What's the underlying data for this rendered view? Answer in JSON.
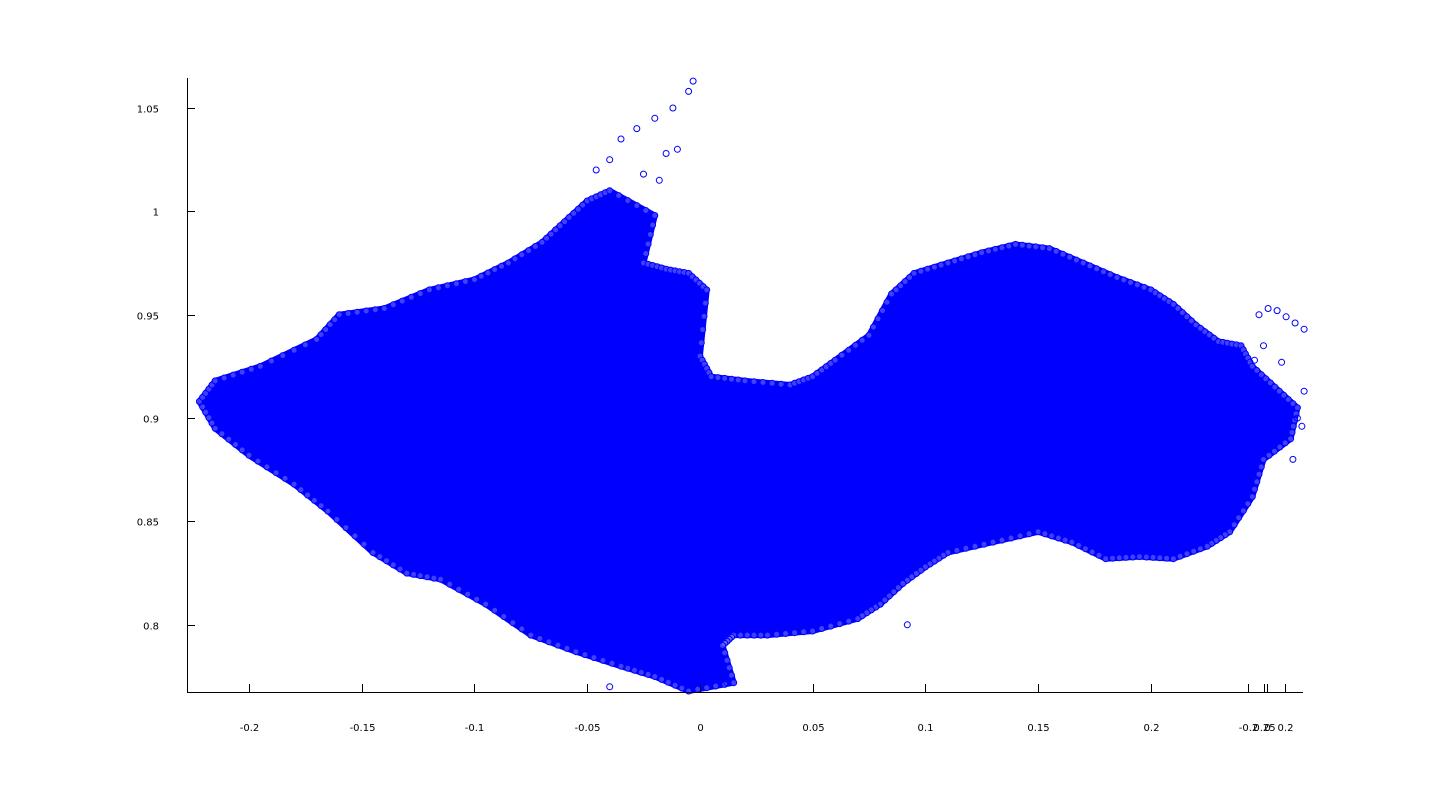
{
  "chart_data": {
    "type": "scatter",
    "title": "",
    "xlabel": "",
    "ylabel": "",
    "marker": "circle-open",
    "marker_color": "#0000ff",
    "grid": false,
    "legend": "none",
    "xlim": [
      -0.2275,
      0.2675
    ],
    "ylim": [
      0.7675,
      1.0645
    ],
    "x_ticks": [
      {
        "value": -0.2,
        "label": "-0.2"
      },
      {
        "value": -0.15,
        "label": "-0.15"
      },
      {
        "value": -0.1,
        "label": "-0.1"
      },
      {
        "value": -0.05,
        "label": "-0.05"
      },
      {
        "value": 0,
        "label": "0"
      },
      {
        "value": 0.05,
        "label": "0.05"
      },
      {
        "value": 0.1,
        "label": "0.1"
      },
      {
        "value": 0.15,
        "label": "0.15"
      },
      {
        "value": 0.2,
        "label": "0.2"
      },
      {
        "value": 0.25,
        "label": "0.25"
      }
    ],
    "extra_x_ticks_label_values": [
      "-0.2",
      "0",
      "0.2"
    ],
    "y_ticks": [
      {
        "value": 0.8,
        "label": "0.8"
      },
      {
        "value": 0.85,
        "label": "0.85"
      },
      {
        "value": 0.9,
        "label": "0.9"
      },
      {
        "value": 0.95,
        "label": "0.95"
      },
      {
        "value": 1,
        "label": "1"
      },
      {
        "value": 1.05,
        "label": "1.05"
      }
    ],
    "region_outline": [
      [
        -0.222,
        0.908
      ],
      [
        -0.215,
        0.918
      ],
      [
        -0.195,
        0.925
      ],
      [
        -0.17,
        0.938
      ],
      [
        -0.16,
        0.95
      ],
      [
        -0.14,
        0.953
      ],
      [
        -0.12,
        0.962
      ],
      [
        -0.1,
        0.967
      ],
      [
        -0.085,
        0.975
      ],
      [
        -0.07,
        0.985
      ],
      [
        -0.06,
        0.995
      ],
      [
        -0.05,
        1.005
      ],
      [
        -0.04,
        1.01
      ],
      [
        -0.02,
        0.998
      ],
      [
        -0.025,
        0.975
      ],
      [
        -0.015,
        0.972
      ],
      [
        -0.005,
        0.97
      ],
      [
        0.003,
        0.962
      ],
      [
        0.0,
        0.93
      ],
      [
        0.005,
        0.92
      ],
      [
        0.02,
        0.918
      ],
      [
        0.04,
        0.916
      ],
      [
        0.05,
        0.92
      ],
      [
        0.06,
        0.928
      ],
      [
        0.075,
        0.94
      ],
      [
        0.085,
        0.96
      ],
      [
        0.095,
        0.97
      ],
      [
        0.11,
        0.975
      ],
      [
        0.125,
        0.98
      ],
      [
        0.14,
        0.984
      ],
      [
        0.155,
        0.982
      ],
      [
        0.17,
        0.975
      ],
      [
        0.185,
        0.968
      ],
      [
        0.2,
        0.962
      ],
      [
        0.21,
        0.955
      ],
      [
        0.22,
        0.945
      ],
      [
        0.23,
        0.937
      ],
      [
        0.24,
        0.935
      ],
      [
        0.245,
        0.925
      ],
      [
        0.255,
        0.915
      ],
      [
        0.265,
        0.905
      ],
      [
        0.262,
        0.89
      ],
      [
        0.25,
        0.88
      ],
      [
        0.245,
        0.862
      ],
      [
        0.235,
        0.845
      ],
      [
        0.225,
        0.838
      ],
      [
        0.21,
        0.832
      ],
      [
        0.195,
        0.833
      ],
      [
        0.18,
        0.832
      ],
      [
        0.165,
        0.84
      ],
      [
        0.15,
        0.845
      ],
      [
        0.13,
        0.84
      ],
      [
        0.11,
        0.835
      ],
      [
        0.1,
        0.828
      ],
      [
        0.09,
        0.82
      ],
      [
        0.08,
        0.81
      ],
      [
        0.07,
        0.803
      ],
      [
        0.05,
        0.797
      ],
      [
        0.03,
        0.795
      ],
      [
        0.015,
        0.795
      ],
      [
        0.01,
        0.79
      ],
      [
        0.015,
        0.772
      ],
      [
        -0.005,
        0.768
      ],
      [
        -0.02,
        0.775
      ],
      [
        -0.035,
        0.78
      ],
      [
        -0.055,
        0.787
      ],
      [
        -0.075,
        0.795
      ],
      [
        -0.095,
        0.81
      ],
      [
        -0.115,
        0.822
      ],
      [
        -0.13,
        0.825
      ],
      [
        -0.145,
        0.835
      ],
      [
        -0.165,
        0.855
      ],
      [
        -0.18,
        0.868
      ],
      [
        -0.2,
        0.882
      ],
      [
        -0.215,
        0.895
      ]
    ],
    "scattered_points": [
      [
        -0.046,
        1.02
      ],
      [
        -0.035,
        1.035
      ],
      [
        -0.028,
        1.04
      ],
      [
        -0.02,
        1.045
      ],
      [
        -0.012,
        1.05
      ],
      [
        -0.005,
        1.058
      ],
      [
        -0.003,
        1.063
      ],
      [
        -0.018,
        1.015
      ],
      [
        -0.01,
        1.03
      ],
      [
        -0.015,
        1.028
      ],
      [
        -0.025,
        1.018
      ],
      [
        -0.04,
        1.025
      ],
      [
        0.248,
        0.95
      ],
      [
        0.252,
        0.953
      ],
      [
        0.256,
        0.952
      ],
      [
        0.26,
        0.949
      ],
      [
        0.264,
        0.946
      ],
      [
        0.268,
        0.943
      ],
      [
        0.25,
        0.935
      ],
      [
        0.258,
        0.927
      ],
      [
        0.246,
        0.928
      ],
      [
        0.268,
        0.913
      ],
      [
        0.267,
        0.896
      ],
      [
        0.263,
        0.88
      ],
      [
        0.24,
        0.92
      ],
      [
        0.265,
        0.9
      ],
      [
        0.092,
        0.8
      ],
      [
        0.08,
        0.81
      ],
      [
        -0.04,
        0.77
      ],
      [
        0.012,
        0.772
      ],
      [
        -0.2,
        0.92
      ],
      [
        -0.21,
        0.916
      ]
    ]
  }
}
